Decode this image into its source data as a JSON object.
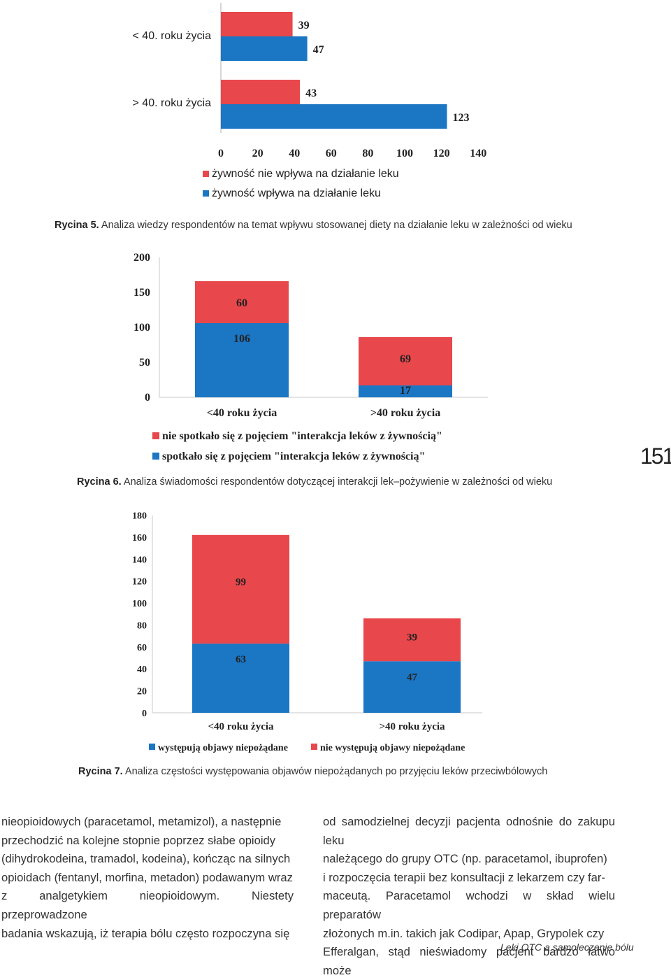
{
  "colors": {
    "red": "#e8474b",
    "blue": "#1b76c4",
    "axis": "#c8c8c8"
  },
  "chart_data": [
    {
      "type": "bar",
      "orientation": "horizontal",
      "categories": [
        "< 40. roku życia",
        "> 40. roku życia"
      ],
      "series": [
        {
          "name": "żywność nie wpływa na działanie leku",
          "values": [
            39,
            43
          ],
          "color": "#e8474b"
        },
        {
          "name": "żywność wpływa na działanie leku",
          "values": [
            47,
            123
          ],
          "color": "#1b76c4"
        }
      ],
      "xlim": [
        0,
        140
      ],
      "xticks": [
        "0",
        "20",
        "40",
        "60",
        "80",
        "100",
        "120",
        "140"
      ],
      "legend": "bottom"
    },
    {
      "type": "bar",
      "stacked": true,
      "categories": [
        "<40 roku życia",
        ">40 roku życia"
      ],
      "series": [
        {
          "name": "spotkało się z pojęciem \"interakcja leków z żywnością\"",
          "values": [
            106,
            17
          ],
          "color": "#1b76c4"
        },
        {
          "name": "nie spotkało się z pojęciem \"interakcja leków z żywnością\"",
          "values": [
            60,
            69
          ],
          "color": "#e8474b"
        }
      ],
      "ylim": [
        0,
        200
      ],
      "yticks": [
        "0",
        "50",
        "100",
        "150",
        "200"
      ],
      "legend": "bottom"
    },
    {
      "type": "bar",
      "stacked": true,
      "categories": [
        "<40 roku życia",
        ">40 roku życia"
      ],
      "series": [
        {
          "name": "występują objawy niepożądane",
          "values": [
            63,
            47
          ],
          "color": "#1b76c4"
        },
        {
          "name": "nie występują objawy niepożądane",
          "values": [
            99,
            39
          ],
          "color": "#e8474b"
        }
      ],
      "ylim": [
        0,
        180
      ],
      "yticks": [
        "0",
        "20",
        "40",
        "60",
        "80",
        "100",
        "120",
        "140",
        "160",
        "180"
      ],
      "legend": "bottom"
    }
  ],
  "captions": {
    "fig5": {
      "label": "Rycina 5.",
      "text": " Analiza wiedzy respondentów na temat wpływu stosowanej diety na działanie leku w zależności od wieku"
    },
    "fig6": {
      "label": "Rycina 6.",
      "text": " Analiza świadomości respondentów dotyczącej interakcji lek–pożywienie w zależności od wieku"
    },
    "fig7": {
      "label": "Rycina 7.",
      "text": " Analiza częstości występowania objawów niepożądanych po przyjęciu leków przeciwbólowych"
    }
  },
  "page_number": "151",
  "body": {
    "left_lines": [
      "nieopioidowych (paracetamol, metamizol), a następnie",
      "przechodzić na kolejne stopnie poprzez słabe opioidy",
      "(dihydrokodeina, tramadol, kodeina), kończąc na silnych",
      "opioidach (fentanyl, morfina, metadon) podawanym wraz",
      "z analgetykiem nieopioidowym. Niestety przeprowadzone",
      "badania wskazują, iż terapia bólu często rozpoczyna się"
    ],
    "right_lines": [
      "od samodzielnej decyzji pacjenta odnośnie do zakupu leku",
      "należącego do grupy OTC (np. paracetamol, ibuprofen)",
      "i rozpoczęcia terapii bez konsultacji z lekarzem czy far-",
      "maceutą. Paracetamol wchodzi w skład wielu preparatów",
      "złożonych m.in. takich jak Codipar, Apap, Grypolek czy",
      "Efferalgan, stąd nieświadomy pacjent bardzo łatwo może"
    ]
  },
  "footer": "Leki OTC a samoleczenie bólu"
}
